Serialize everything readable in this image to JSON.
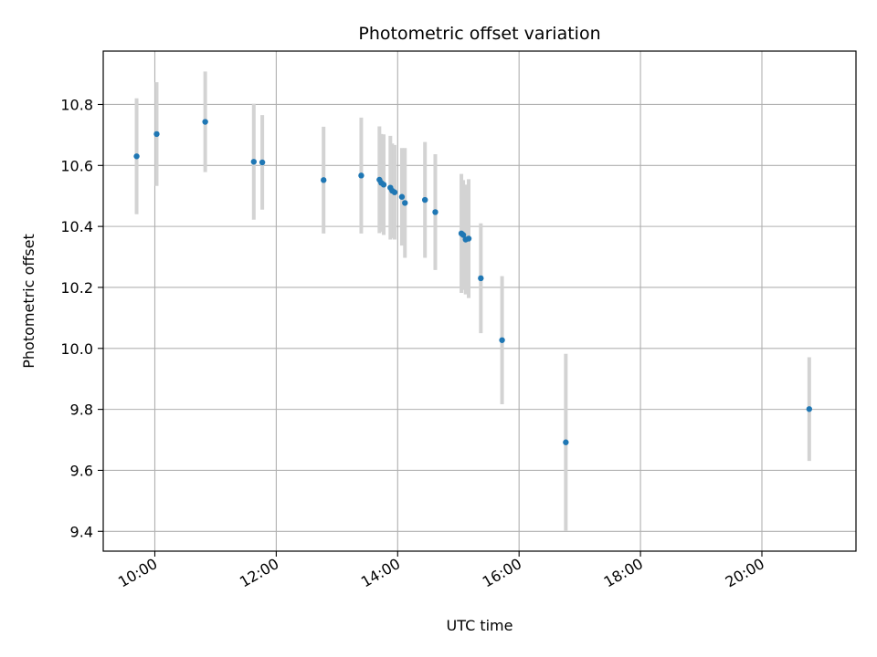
{
  "chart_data": {
    "type": "scatter",
    "title": "Photometric offset variation",
    "xlabel": "UTC time",
    "ylabel": "Photometric offset",
    "x_unit": "hours (UTC)",
    "xlim": [
      9.15,
      21.55
    ],
    "ylim": [
      9.335,
      10.975
    ],
    "grid": true,
    "x_ticks": [
      {
        "value": 10,
        "label": "10:00"
      },
      {
        "value": 12,
        "label": "12:00"
      },
      {
        "value": 14,
        "label": "14:00"
      },
      {
        "value": 16,
        "label": "16:00"
      },
      {
        "value": 18,
        "label": "18:00"
      },
      {
        "value": 20,
        "label": "20:00"
      }
    ],
    "y_ticks": [
      {
        "value": 9.4,
        "label": "9.4"
      },
      {
        "value": 9.6,
        "label": "9.6"
      },
      {
        "value": 9.8,
        "label": "9.8"
      },
      {
        "value": 10.0,
        "label": "10.0"
      },
      {
        "value": 10.2,
        "label": "10.2"
      },
      {
        "value": 10.4,
        "label": "10.4"
      },
      {
        "value": 10.6,
        "label": "10.6"
      },
      {
        "value": 10.8,
        "label": "10.8"
      }
    ],
    "marker_color": "#1f77b4",
    "errorbar_color": "#d3d3d3",
    "points": [
      {
        "x": 9.7,
        "y": 10.63,
        "err": 0.19
      },
      {
        "x": 10.03,
        "y": 10.703,
        "err": 0.17
      },
      {
        "x": 10.83,
        "y": 10.743,
        "err": 0.165
      },
      {
        "x": 11.63,
        "y": 10.612,
        "err": 0.19
      },
      {
        "x": 11.77,
        "y": 10.61,
        "err": 0.155
      },
      {
        "x": 12.78,
        "y": 10.552,
        "err": 0.175
      },
      {
        "x": 13.4,
        "y": 10.567,
        "err": 0.19
      },
      {
        "x": 13.7,
        "y": 10.553,
        "err": 0.175
      },
      {
        "x": 13.73,
        "y": 10.543,
        "err": 0.16
      },
      {
        "x": 13.77,
        "y": 10.537,
        "err": 0.165
      },
      {
        "x": 13.88,
        "y": 10.527,
        "err": 0.17
      },
      {
        "x": 13.91,
        "y": 10.517,
        "err": 0.155
      },
      {
        "x": 13.95,
        "y": 10.512,
        "err": 0.155
      },
      {
        "x": 14.07,
        "y": 10.497,
        "err": 0.16
      },
      {
        "x": 14.12,
        "y": 10.477,
        "err": 0.18
      },
      {
        "x": 14.45,
        "y": 10.487,
        "err": 0.19
      },
      {
        "x": 14.62,
        "y": 10.447,
        "err": 0.19
      },
      {
        "x": 15.05,
        "y": 10.377,
        "err": 0.195
      },
      {
        "x": 15.08,
        "y": 10.372,
        "err": 0.18
      },
      {
        "x": 15.12,
        "y": 10.357,
        "err": 0.18
      },
      {
        "x": 15.17,
        "y": 10.36,
        "err": 0.195
      },
      {
        "x": 15.37,
        "y": 10.23,
        "err": 0.18
      },
      {
        "x": 15.72,
        "y": 10.027,
        "err": 0.21
      },
      {
        "x": 16.77,
        "y": 9.692,
        "err": 0.29
      },
      {
        "x": 20.78,
        "y": 9.801,
        "err": 0.17
      }
    ]
  }
}
